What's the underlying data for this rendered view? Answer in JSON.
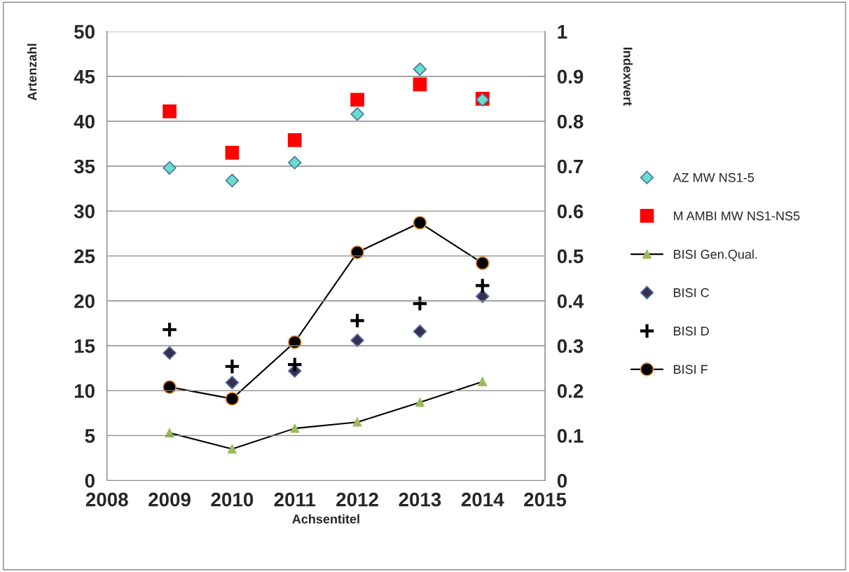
{
  "chart_data": {
    "type": "scatter",
    "xlabel": "Achsentitel",
    "ylabel": "Artenzahl",
    "y2label": "Indexwert",
    "x": [
      2009,
      2010,
      2011,
      2012,
      2013,
      2014
    ],
    "xlim": [
      2008,
      2015
    ],
    "xticks": [
      2008,
      2009,
      2010,
      2011,
      2012,
      2013,
      2014,
      2015
    ],
    "ylim": [
      0,
      50
    ],
    "yticks": [
      0,
      5,
      10,
      15,
      20,
      25,
      30,
      35,
      40,
      45,
      50
    ],
    "y2lim": [
      0,
      1
    ],
    "y2ticks": [
      {
        "value": 0,
        "label": "0"
      },
      0.1,
      0.2,
      0.3,
      0.4,
      0.5,
      0.6,
      0.7,
      0.8,
      0.9,
      {
        "value": 1,
        "label": "1"
      }
    ],
    "grid": "y",
    "legend": "right",
    "series": [
      {
        "name": "AZ MW NS1-5",
        "marker": "diamond",
        "color": "#66e0c8",
        "values": [
          34.8,
          33.4,
          35.4,
          40.8,
          45.8,
          42.4
        ]
      },
      {
        "name": "M AMBI MW NS1-NS5",
        "marker": "square",
        "color": "#ff0000",
        "axis": "y2",
        "values": [
          0.822,
          0.73,
          0.758,
          0.848,
          0.882,
          0.85
        ]
      },
      {
        "name": "BISI Gen.Qual.",
        "type": "line",
        "marker": "triangle",
        "color": "#9bbb59",
        "axis": "y2",
        "values": [
          0.106,
          0.07,
          0.116,
          0.13,
          0.174,
          0.22
        ]
      },
      {
        "name": "BISI C",
        "marker": "diamond",
        "color": "#3b2f4f",
        "axis": "y2",
        "values": [
          0.284,
          0.218,
          0.244,
          0.312,
          0.332,
          0.41
        ]
      },
      {
        "name": "BISI D",
        "marker": "cross",
        "color": "#000000",
        "axis": "y2",
        "values": [
          0.336,
          0.254,
          0.258,
          0.356,
          0.394,
          0.434
        ]
      },
      {
        "name": "BISI F",
        "type": "line",
        "marker": "circle",
        "color": "#000000",
        "axis": "y2",
        "values": [
          0.208,
          0.182,
          0.308,
          0.508,
          0.574,
          0.484
        ]
      }
    ]
  }
}
